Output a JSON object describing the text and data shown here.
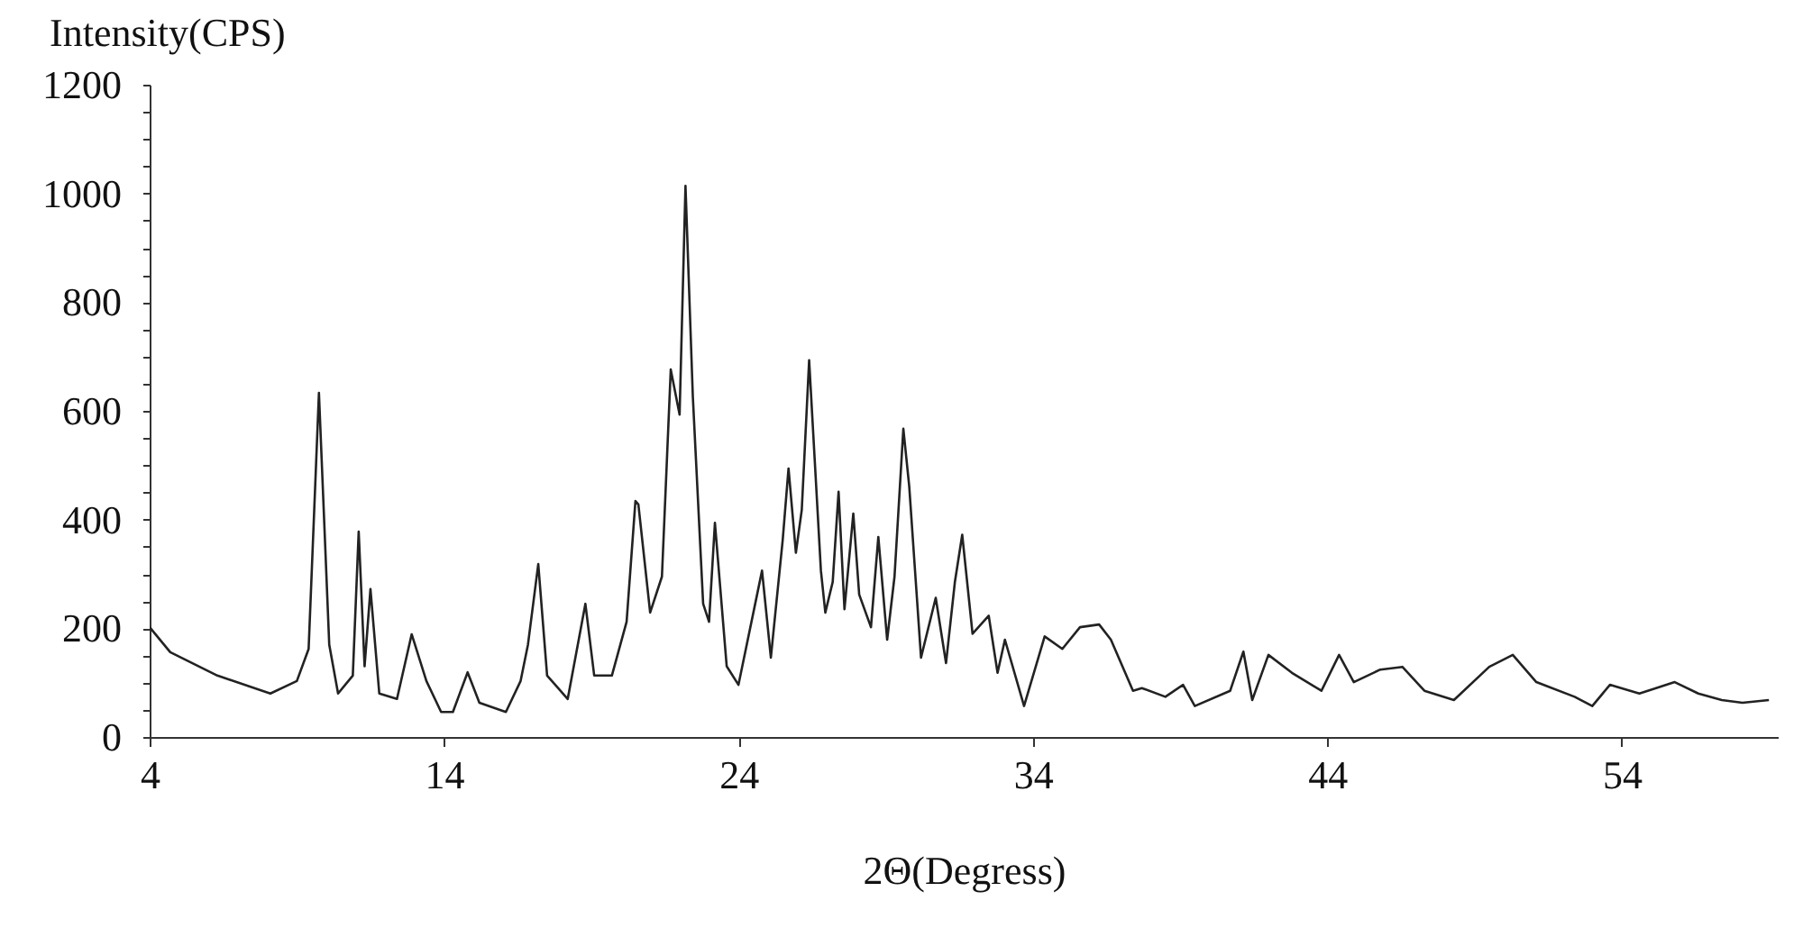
{
  "chart_data": {
    "type": "line",
    "xlabel": "2Θ(Degress)",
    "ylabel": "Intensity(CPS)",
    "x": [
      4,
      4.7,
      6.3,
      8.1,
      9.0,
      9.4,
      9.75,
      10.1,
      10.4,
      10.9,
      11.1,
      11.3,
      11.5,
      11.8,
      12.4,
      12.9,
      13.4,
      13.9,
      14.3,
      14.8,
      15.2,
      16.1,
      16.6,
      16.85,
      17.2,
      17.5,
      18.2,
      18.8,
      19.1,
      19.7,
      20.2,
      20.5,
      20.6,
      21.0,
      21.4,
      21.7,
      22.0,
      22.2,
      22.45,
      22.8,
      23.0,
      23.2,
      23.6,
      24.0,
      24.8,
      25.1,
      25.5,
      25.7,
      25.95,
      26.15,
      26.4,
      26.8,
      26.95,
      27.2,
      27.4,
      27.6,
      27.9,
      28.1,
      28.5,
      28.75,
      29.05,
      29.3,
      29.6,
      29.8,
      30.2,
      30.7,
      31.05,
      31.35,
      31.6,
      31.95,
      32.5,
      32.8,
      33.05,
      33.7,
      34.4,
      35.0,
      35.6,
      36.25,
      36.65,
      37.05,
      37.4,
      37.7,
      38.5,
      39.1,
      39.5,
      40.7,
      41.15,
      41.45,
      42.0,
      42.8,
      43.8,
      44.4,
      44.9,
      45.8,
      46.55,
      47.3,
      48.3,
      49.5,
      50.3,
      51.1,
      52.4,
      53.0,
      53.6,
      54.6,
      55.8,
      56.6,
      57.4,
      58.1,
      59.0
    ],
    "series": [
      {
        "color": "#222222",
        "values": [
          202,
          156,
          113,
          80,
          103,
          162,
          633,
          170,
          80,
          113,
          378,
          130,
          272,
          80,
          70,
          189,
          103,
          46,
          46,
          119,
          63,
          46,
          103,
          170,
          318,
          113,
          70,
          245,
          113,
          113,
          212,
          434,
          428,
          229,
          295,
          676,
          593,
          1014,
          626,
          245,
          212,
          394,
          130,
          96,
          306,
          146,
          361,
          494,
          339,
          418,
          693,
          306,
          229,
          285,
          451,
          235,
          411,
          262,
          202,
          368,
          179,
          295,
          567,
          461,
          146,
          256,
          136,
          285,
          372,
          190,
          223,
          118,
          179,
          57,
          185,
          162,
          202,
          207,
          179,
          129,
          85,
          90,
          74,
          96,
          57,
          85,
          157,
          68,
          151,
          118,
          85,
          151,
          101,
          124,
          129,
          85,
          68,
          129,
          151,
          101,
          74,
          57,
          96,
          80,
          101,
          80,
          68,
          63,
          68
        ]
      }
    ],
    "xlim": [
      4,
      59.3
    ],
    "xticks": [
      4,
      14,
      24,
      34,
      44,
      54
    ],
    "ylim": [
      0,
      1200
    ],
    "yticks": [
      0,
      {
        "value": 50,
        "label": null
      },
      {
        "value": 100,
        "label": null
      },
      {
        "value": 150,
        "label": null
      },
      200,
      {
        "value": 250,
        "label": null
      },
      {
        "value": 300,
        "label": null
      },
      {
        "value": 350,
        "label": null
      },
      400,
      {
        "value": 450,
        "label": null
      },
      {
        "value": 500,
        "label": null
      },
      {
        "value": 550,
        "label": null
      },
      600,
      {
        "value": 650,
        "label": null
      },
      {
        "value": 700,
        "label": null
      },
      {
        "value": 750,
        "label": null
      },
      800,
      {
        "value": 850,
        "label": null
      },
      {
        "value": 900,
        "label": null
      },
      {
        "value": 950,
        "label": null
      },
      1000,
      {
        "value": 1050,
        "label": null
      },
      {
        "value": 1100,
        "label": null
      },
      {
        "value": 1150,
        "label": null
      },
      1200
    ],
    "grid": false,
    "marker": "none",
    "line_style": "solid"
  }
}
